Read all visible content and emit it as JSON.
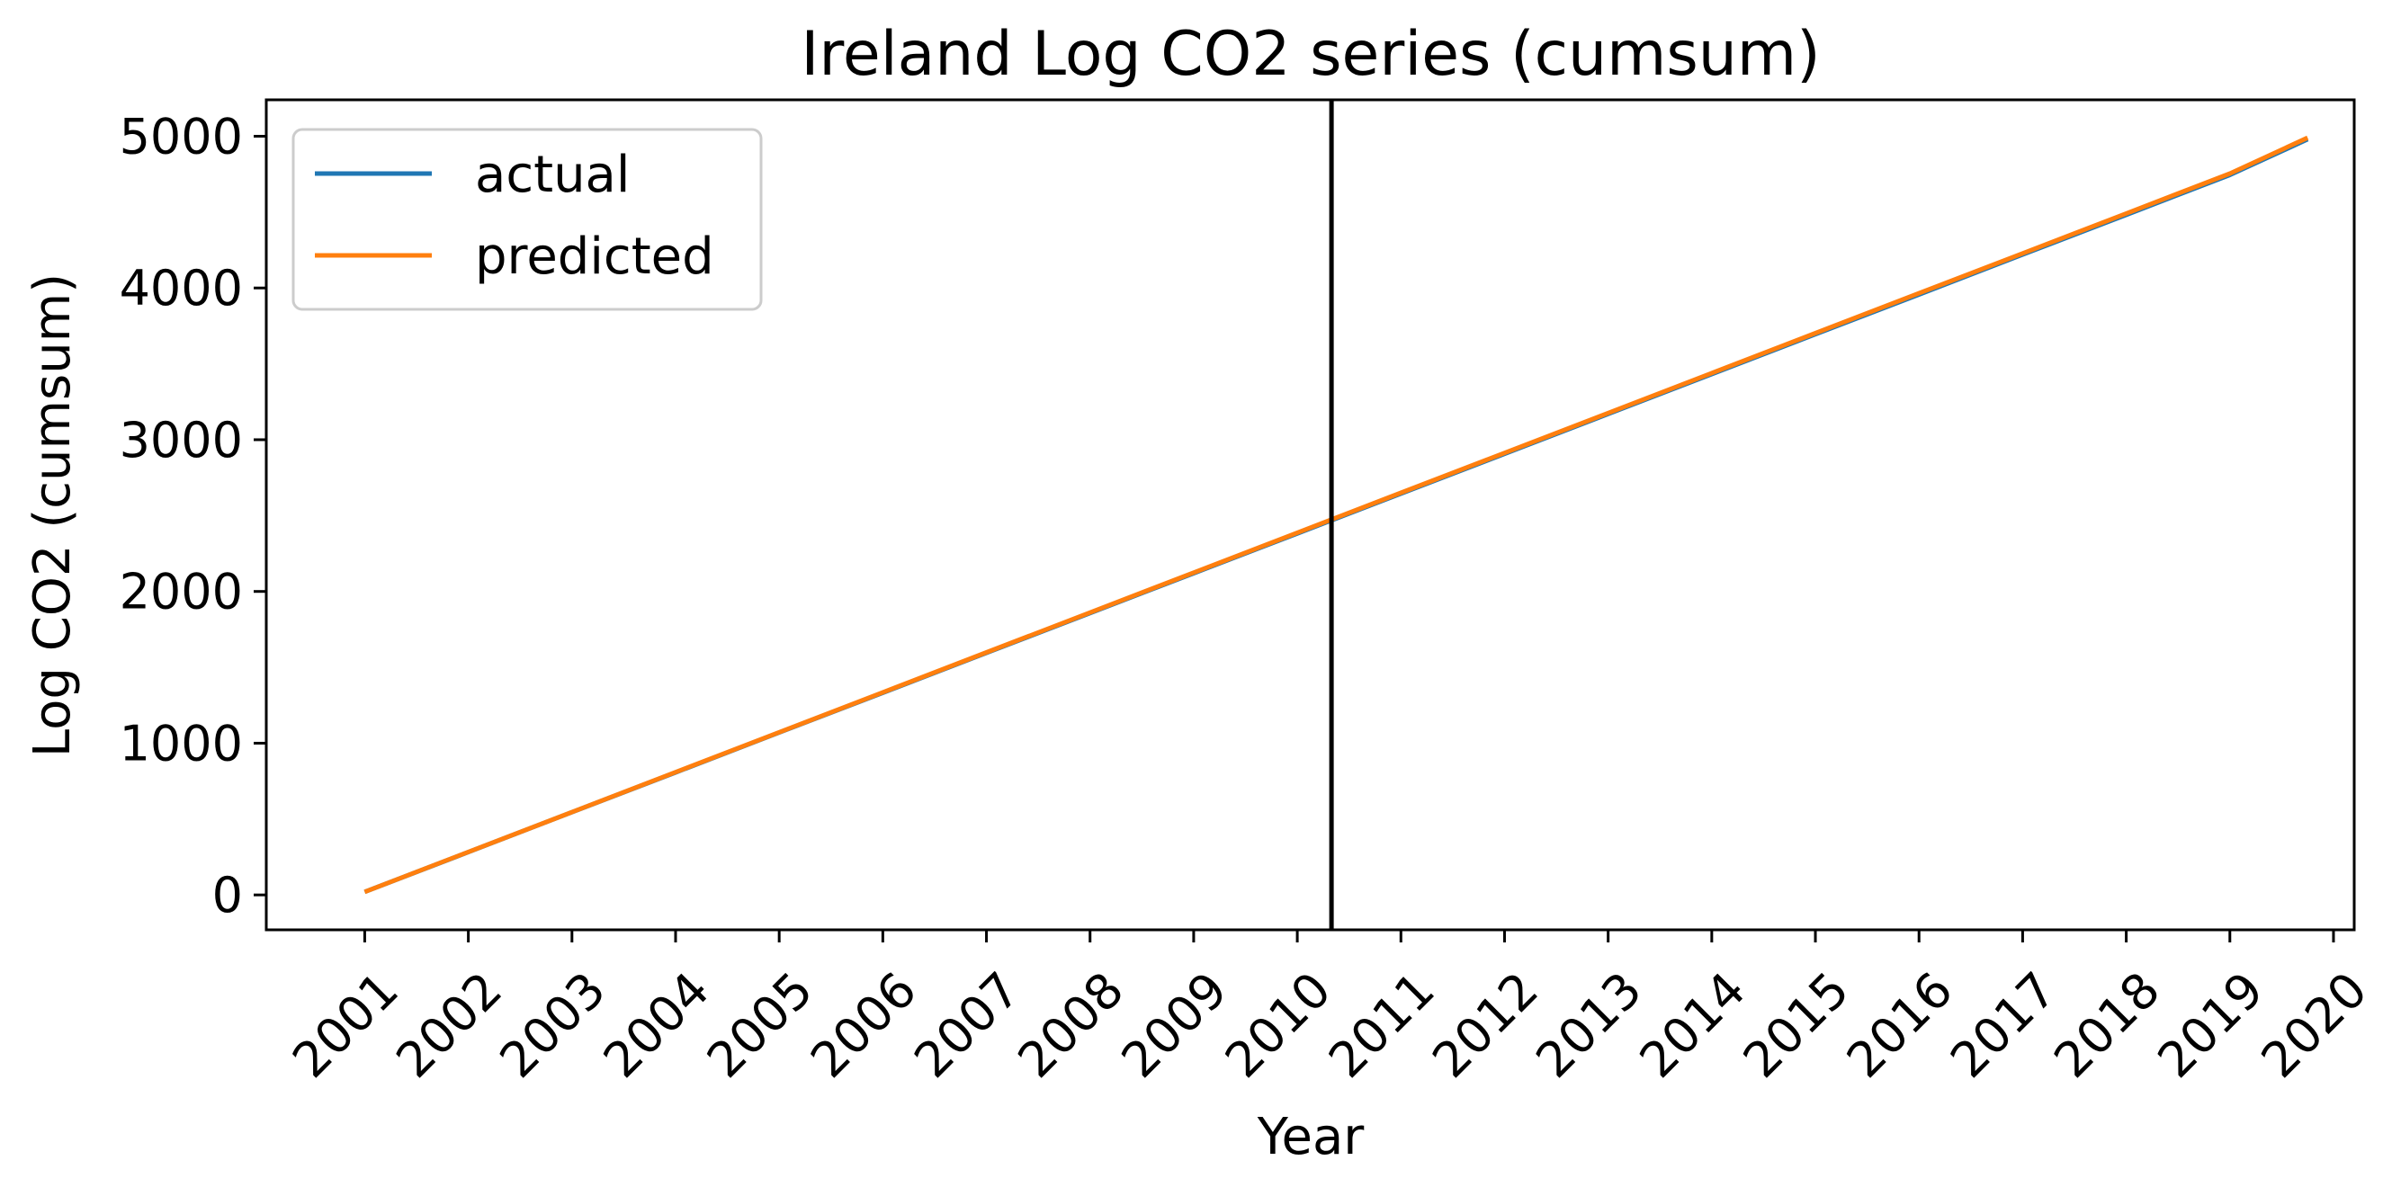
{
  "chart_data": {
    "type": "line",
    "title": "Ireland Log CO2 series (cumsum)",
    "xlabel": "Year",
    "ylabel": "Log CO2 (cumsum)",
    "x_ticks": [
      "2001",
      "2002",
      "2003",
      "2004",
      "2005",
      "2006",
      "2007",
      "2008",
      "2009",
      "2010",
      "2011",
      "2012",
      "2013",
      "2014",
      "2015",
      "2016",
      "2017",
      "2018",
      "2019",
      "2020"
    ],
    "y_ticks": [
      0,
      1000,
      2000,
      3000,
      4000,
      5000
    ],
    "xlim": [
      2000.05,
      2020.2
    ],
    "ylim": [
      -230,
      5240
    ],
    "vertical_marker_x": 2010.33,
    "series": [
      {
        "name": "actual",
        "color": "#1f77b4",
        "x": [
          2001,
          2002,
          2003,
          2004,
          2005,
          2006,
          2007,
          2008,
          2009,
          2010,
          2011,
          2012,
          2013,
          2014,
          2015,
          2016,
          2017,
          2018,
          2019,
          2019.75
        ],
        "y": [
          20,
          282,
          545,
          807,
          1070,
          1332,
          1595,
          1857,
          2120,
          2382,
          2645,
          2907,
          3170,
          3432,
          3695,
          3957,
          4220,
          4482,
          4745,
          4980
        ]
      },
      {
        "name": "predicted",
        "color": "#ff7f0e",
        "x": [
          2001,
          2002,
          2003,
          2004,
          2005,
          2006,
          2007,
          2008,
          2009,
          2010,
          2011,
          2012,
          2013,
          2014,
          2015,
          2016,
          2017,
          2018,
          2019,
          2019.75
        ],
        "y": [
          20,
          283,
          546,
          809,
          1072,
          1335,
          1598,
          1861,
          2124,
          2387,
          2650,
          2913,
          3176,
          3439,
          3702,
          3965,
          4228,
          4491,
          4754,
          4990
        ]
      }
    ],
    "legend": {
      "position": "top-left",
      "entries": [
        {
          "label": "actual",
          "color": "#1f77b4"
        },
        {
          "label": "predicted",
          "color": "#ff7f0e"
        }
      ]
    },
    "grid": false
  }
}
